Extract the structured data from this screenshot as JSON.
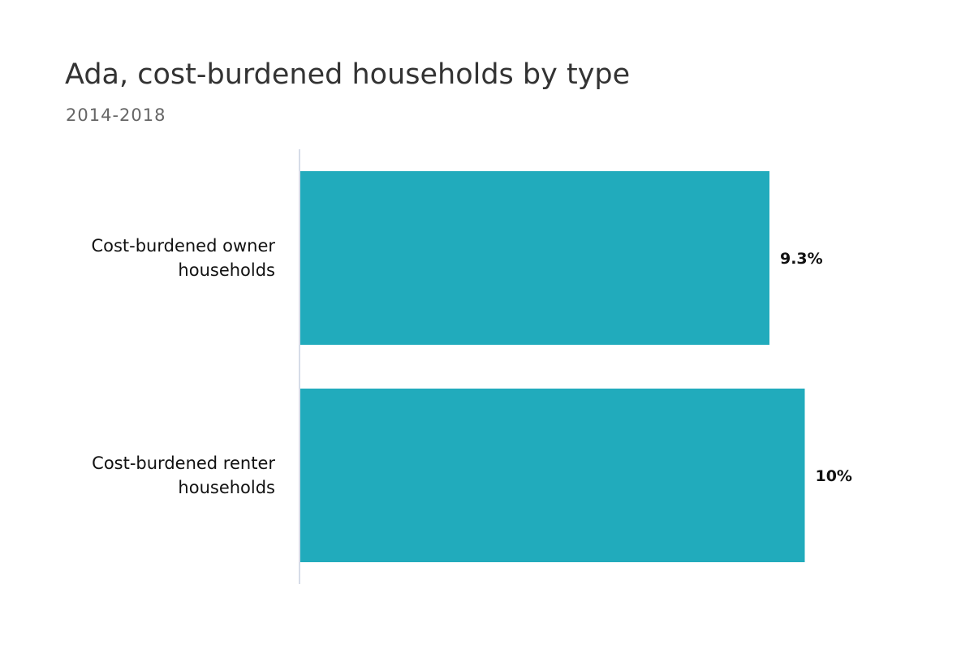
{
  "chart": {
    "title": "Ada, cost-burdened households by type",
    "subtitle": "2014-2018"
  },
  "colors": {
    "bar": "#21abbc",
    "axis": "#c8d0e0",
    "label": "#111111",
    "title": "#333333",
    "subtitle": "#666666"
  },
  "chart_data": {
    "type": "bar",
    "orientation": "horizontal",
    "title": "Ada, cost-burdened households by type",
    "subtitle": "2014-2018",
    "categories": [
      "Cost-burdened owner households",
      "Cost-burdened renter households"
    ],
    "category_lines": [
      [
        "Cost-burdened owner",
        "households"
      ],
      [
        "Cost-burdened renter",
        "households"
      ]
    ],
    "values": [
      9.3,
      10
    ],
    "value_labels": [
      "9.3%",
      "10%"
    ],
    "unit": "%",
    "xlim": [
      0,
      10.7
    ],
    "grid": false,
    "legend": "none"
  }
}
